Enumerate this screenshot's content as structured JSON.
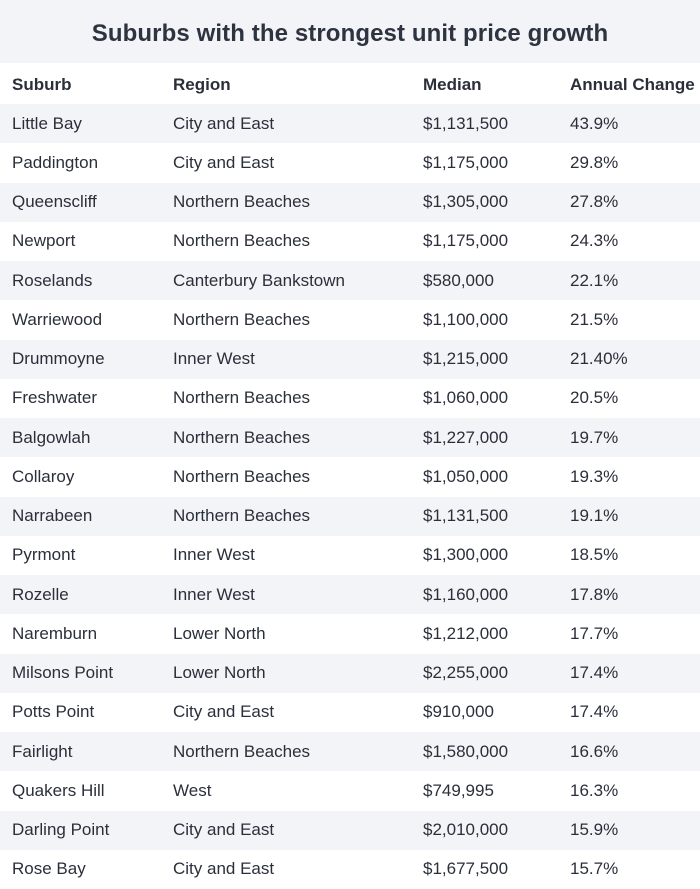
{
  "chart_data": {
    "type": "table",
    "title": "Suburbs with the strongest unit price growth",
    "columns": [
      "Suburb",
      "Region",
      "Median",
      "Annual Change"
    ],
    "rows": [
      [
        "Little Bay",
        "City and East",
        "$1,131,500",
        "43.9%"
      ],
      [
        "Paddington",
        "City and East",
        "$1,175,000",
        "29.8%"
      ],
      [
        "Queenscliff",
        "Northern Beaches",
        "$1,305,000",
        "27.8%"
      ],
      [
        "Newport",
        "Northern Beaches",
        "$1,175,000",
        "24.3%"
      ],
      [
        "Roselands",
        "Canterbury Bankstown",
        "$580,000",
        "22.1%"
      ],
      [
        "Warriewood",
        "Northern Beaches",
        "$1,100,000",
        "21.5%"
      ],
      [
        "Drummoyne",
        "Inner West",
        "$1,215,000",
        "21.40%"
      ],
      [
        "Freshwater",
        "Northern Beaches",
        "$1,060,000",
        "20.5%"
      ],
      [
        "Balgowlah",
        "Northern Beaches",
        "$1,227,000",
        "19.7%"
      ],
      [
        "Collaroy",
        "Northern Beaches",
        "$1,050,000",
        "19.3%"
      ],
      [
        "Narrabeen",
        "Northern Beaches",
        "$1,131,500",
        "19.1%"
      ],
      [
        "Pyrmont",
        "Inner West",
        "$1,300,000",
        "18.5%"
      ],
      [
        "Rozelle",
        "Inner West",
        "$1,160,000",
        "17.8%"
      ],
      [
        "Naremburn",
        "Lower North",
        "$1,212,000",
        "17.7%"
      ],
      [
        "Milsons Point",
        "Lower North",
        "$2,255,000",
        "17.4%"
      ],
      [
        "Potts Point",
        "City and East",
        "$910,000",
        "17.4%"
      ],
      [
        "Fairlight",
        "Northern Beaches",
        "$1,580,000",
        "16.6%"
      ],
      [
        "Quakers Hill",
        "West",
        "$749,995",
        "16.3%"
      ],
      [
        "Darling Point",
        "City and East",
        "$2,010,000",
        "15.9%"
      ],
      [
        "Rose Bay",
        "City and East",
        "$1,677,500",
        "15.7%"
      ]
    ]
  },
  "colors": {
    "stripe": "#f3f4f7",
    "text": "#2a2f3a",
    "background": "#ffffff"
  }
}
